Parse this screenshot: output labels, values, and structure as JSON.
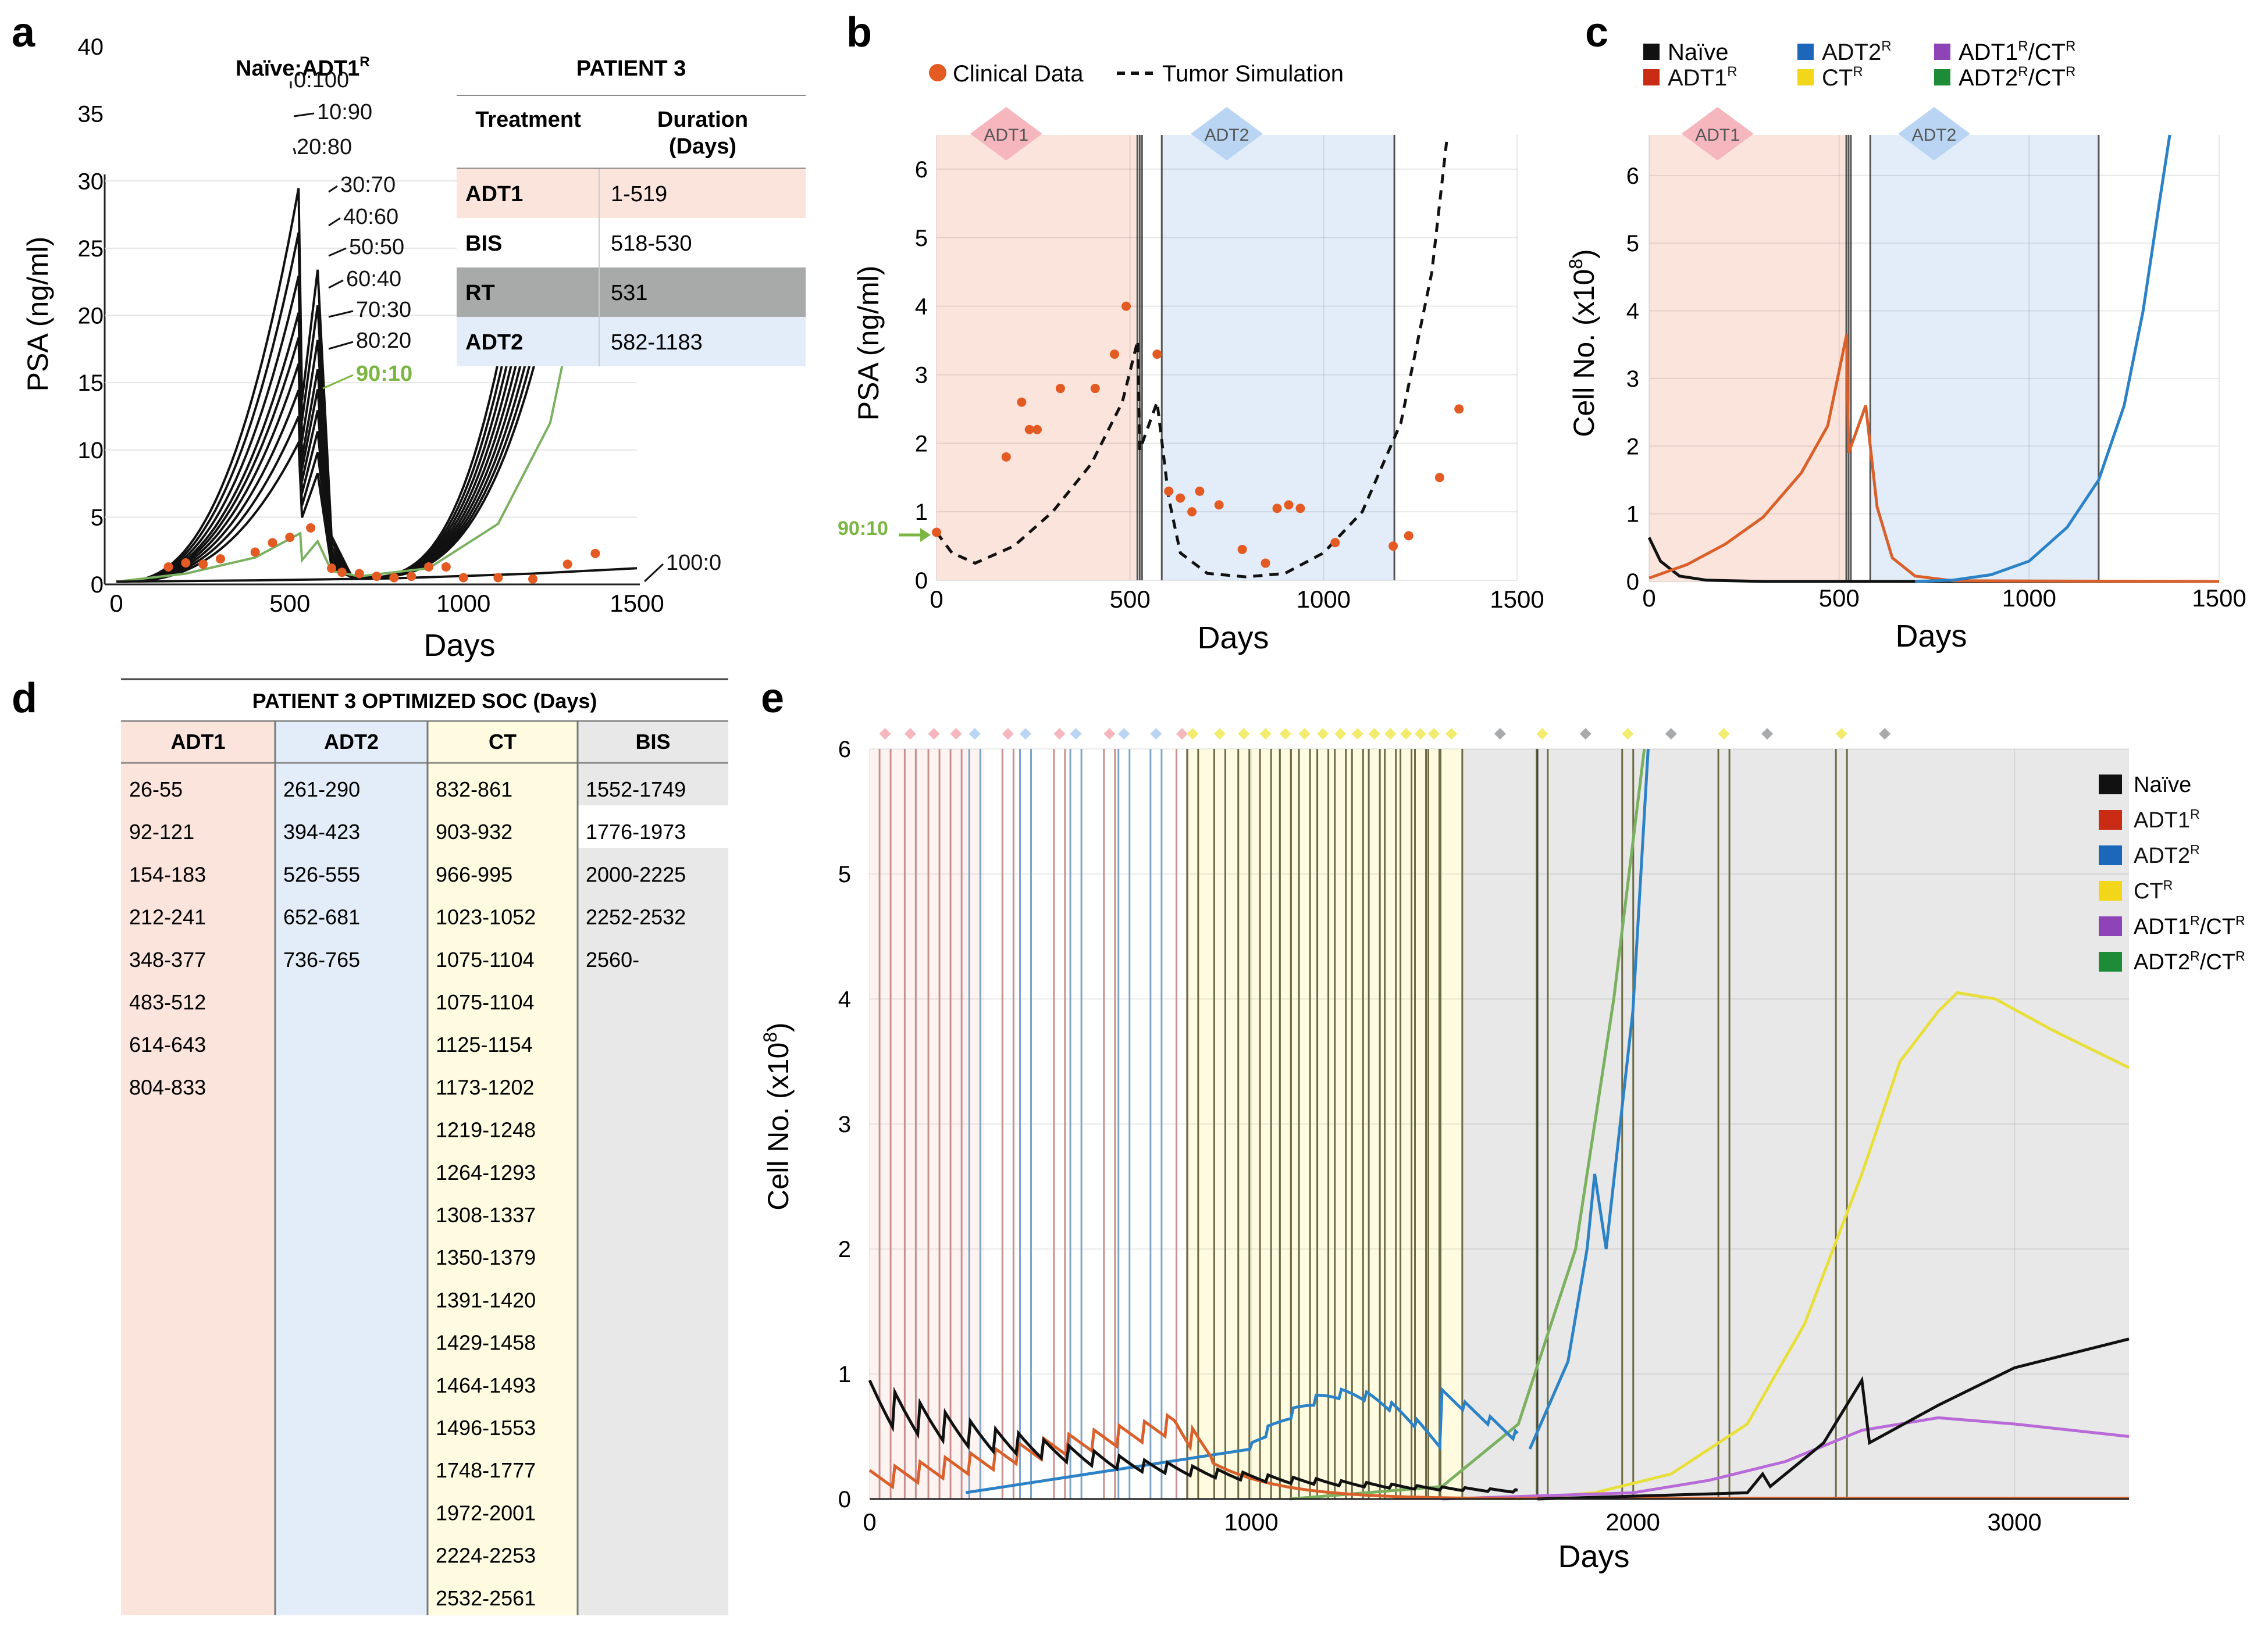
{
  "colors": {
    "adt1": "#fbe4dc",
    "adt2": "#e2edf9",
    "ct": "#fefbe0",
    "bis": "#e8e8e8",
    "rt": "#a7aaa8",
    "naive": "#111111",
    "adt1r": "#d9602a",
    "adt2r": "#2c82c6",
    "ctr": "#e8df3a",
    "adt1r_ctr": "#b86ad8",
    "adt2r_ctr": "#7ab060",
    "clinical": "#e45a23",
    "green_label": "#7bb642",
    "adt1_diamond": "#f6b6bd",
    "adt2_diamond": "#b9d5f3",
    "ct_diamond": "#f2ec6e",
    "bis_diamond": "#a9aaac",
    "legend_adt1r": "#c92b14",
    "legend_adt2r": "#1c67b9",
    "legend_ctr": "#f1d619",
    "legend_adt1r_ctr": "#8e43b6",
    "legend_adt2r_ctr": "#1e8b37"
  },
  "panel_letters": {
    "a": "a",
    "b": "b",
    "c": "c",
    "d": "d",
    "e": "e"
  },
  "superscript_r": "R",
  "patient3_table": {
    "title": "PATIENT 3",
    "col_treatment": "Treatment",
    "col_duration": "Duration\n(Days)",
    "rows": [
      {
        "treatment": "ADT1",
        "duration": "1-519"
      },
      {
        "treatment": "BIS",
        "duration": "518-530"
      },
      {
        "treatment": "RT",
        "duration": "531"
      },
      {
        "treatment": "ADT2",
        "duration": "582-1183"
      }
    ]
  },
  "optimized_table": {
    "title": "PATIENT 3 OPTIMIZED SOC (Days)",
    "headers": [
      "ADT1",
      "ADT2",
      "CT",
      "BIS"
    ],
    "adt1": [
      "26-55",
      "92-121",
      "154-183",
      "212-241",
      "348-377",
      "483-512",
      "614-643",
      "804-833"
    ],
    "adt2": [
      "261-290",
      "394-423",
      "526-555",
      "652-681",
      "736-765"
    ],
    "ct": [
      "832-861",
      "903-932",
      "966-995",
      "1023-1052",
      "1075-1104",
      "1075-1104",
      "1125-1154",
      "1173-1202",
      "1219-1248",
      "1264-1293",
      "1308-1337",
      "1350-1379",
      "1391-1420",
      "1429-1458",
      "1464-1493",
      "1496-1553",
      "1748-1777",
      "1972-2001",
      "2224-2253",
      "2532-2561"
    ],
    "bis": [
      "1552-1749",
      "1776-1973",
      "2000-2225",
      "2252-2532",
      "2560-"
    ]
  },
  "chart_data": [
    {
      "id": "a",
      "type": "line",
      "title": "Naïve:ADT1",
      "xlabel": "Days",
      "ylabel": "PSA (ng/ml)",
      "xlim": [
        0,
        1500
      ],
      "ylim": [
        0,
        40
      ],
      "x_ticks": [
        0,
        500,
        1000,
        1500
      ],
      "y_ticks": [
        0,
        5,
        10,
        15,
        20,
        25,
        30,
        35,
        40
      ],
      "series_labels": [
        "0:100",
        "10:90",
        "20:80",
        "30:70",
        "40:60",
        "50:50",
        "60:40",
        "70:30",
        "80:20",
        "90:10",
        "100:0"
      ],
      "series_peaks": [
        30,
        26.6,
        23.3,
        20.5,
        18.6,
        16.6,
        14.6,
        12.6,
        10.6,
        3.8,
        1.2
      ],
      "highlight_label": "90:10",
      "clinical_points": [
        [
          150,
          1.3
        ],
        [
          200,
          1.6
        ],
        [
          250,
          1.5
        ],
        [
          300,
          1.9
        ],
        [
          400,
          2.4
        ],
        [
          450,
          3.1
        ],
        [
          500,
          3.5
        ],
        [
          560,
          4.2
        ],
        [
          620,
          1.2
        ],
        [
          650,
          0.9
        ],
        [
          700,
          0.8
        ],
        [
          750,
          0.6
        ],
        [
          800,
          0.5
        ],
        [
          850,
          0.6
        ],
        [
          900,
          1.3
        ],
        [
          950,
          1.3
        ],
        [
          1000,
          0.5
        ],
        [
          1100,
          0.5
        ],
        [
          1200,
          0.4
        ],
        [
          1300,
          1.5
        ],
        [
          1380,
          2.3
        ]
      ]
    },
    {
      "id": "b",
      "type": "line",
      "legend": [
        "Clinical Data",
        "Tumor Simulation"
      ],
      "xlabel": "Days",
      "ylabel": "PSA (ng/ml)",
      "xlim": [
        0,
        1500
      ],
      "ylim": [
        0,
        6.5
      ],
      "x_ticks": [
        0,
        500,
        1000,
        1500
      ],
      "y_ticks": [
        0,
        1,
        2,
        3,
        4,
        5,
        6
      ],
      "highlight_label": "90:10",
      "treatment_labels": [
        "ADT1",
        "ADT2"
      ],
      "simulation": [
        [
          0,
          0.7
        ],
        [
          40,
          0.4
        ],
        [
          100,
          0.25
        ],
        [
          200,
          0.5
        ],
        [
          300,
          1.0
        ],
        [
          400,
          1.7
        ],
        [
          480,
          2.6
        ],
        [
          520,
          3.5
        ],
        [
          525,
          1.9
        ],
        [
          570,
          2.6
        ],
        [
          600,
          1.2
        ],
        [
          630,
          0.4
        ],
        [
          700,
          0.1
        ],
        [
          800,
          0.05
        ],
        [
          900,
          0.1
        ],
        [
          1000,
          0.4
        ],
        [
          1100,
          1.0
        ],
        [
          1200,
          2.3
        ],
        [
          1280,
          4.5
        ],
        [
          1320,
          6.5
        ]
      ],
      "clinical_points": [
        [
          0,
          0.7
        ],
        [
          180,
          1.8
        ],
        [
          220,
          2.6
        ],
        [
          240,
          2.2
        ],
        [
          260,
          2.2
        ],
        [
          320,
          2.8
        ],
        [
          410,
          2.8
        ],
        [
          460,
          3.3
        ],
        [
          490,
          4.0
        ],
        [
          570,
          3.3
        ],
        [
          600,
          1.3
        ],
        [
          630,
          1.2
        ],
        [
          660,
          1.0
        ],
        [
          680,
          1.3
        ],
        [
          730,
          1.1
        ],
        [
          790,
          0.45
        ],
        [
          850,
          0.25
        ],
        [
          880,
          1.05
        ],
        [
          910,
          1.1
        ],
        [
          940,
          1.05
        ],
        [
          1030,
          0.55
        ],
        [
          1180,
          0.5
        ],
        [
          1220,
          0.65
        ],
        [
          1300,
          1.5
        ],
        [
          1350,
          2.5
        ]
      ]
    },
    {
      "id": "c",
      "type": "line",
      "legend": [
        "Naïve",
        "ADT1",
        "ADT2",
        "CT",
        "ADT1/CT",
        "ADT2/CT"
      ],
      "xlabel": "Days",
      "ylabel": "Cell No. (x10",
      "ylabel_exp": "8",
      "ylabel_close": ")",
      "xlim": [
        0,
        1500
      ],
      "ylim": [
        0,
        6.6
      ],
      "x_ticks": [
        0,
        500,
        1000,
        1500
      ],
      "y_ticks": [
        0,
        1,
        2,
        3,
        4,
        5,
        6
      ],
      "treatment_labels": [
        "ADT1",
        "ADT2"
      ],
      "naive": [
        [
          0,
          0.65
        ],
        [
          30,
          0.3
        ],
        [
          80,
          0.08
        ],
        [
          150,
          0.02
        ],
        [
          300,
          0.0
        ],
        [
          1500,
          0.0
        ]
      ],
      "adt1r": [
        [
          0,
          0.05
        ],
        [
          100,
          0.25
        ],
        [
          200,
          0.55
        ],
        [
          300,
          0.95
        ],
        [
          400,
          1.6
        ],
        [
          470,
          2.3
        ],
        [
          520,
          3.65
        ],
        [
          525,
          1.9
        ],
        [
          570,
          2.6
        ],
        [
          600,
          1.1
        ],
        [
          640,
          0.35
        ],
        [
          700,
          0.08
        ],
        [
          800,
          0.01
        ],
        [
          1500,
          0.0
        ]
      ],
      "adt2r": [
        [
          700,
          0.0
        ],
        [
          800,
          0.02
        ],
        [
          900,
          0.1
        ],
        [
          1000,
          0.3
        ],
        [
          1100,
          0.8
        ],
        [
          1183,
          1.5
        ],
        [
          1250,
          2.6
        ],
        [
          1300,
          4.0
        ],
        [
          1340,
          5.5
        ],
        [
          1370,
          6.6
        ]
      ]
    },
    {
      "id": "e",
      "type": "line",
      "legend": [
        "Naïve",
        "ADT1",
        "ADT2",
        "CT",
        "ADT1/CT",
        "ADT2/CT"
      ],
      "xlabel": "Days",
      "ylabel": "Cell No. (x10",
      "ylabel_exp": "8",
      "ylabel_close": ")",
      "xlim": [
        0,
        3300
      ],
      "ylim": [
        0,
        6
      ],
      "x_ticks": [
        0,
        1000,
        2000,
        3000
      ],
      "y_ticks": [
        0,
        1,
        2,
        3,
        4,
        5,
        6
      ],
      "ctr": [
        [
          1700,
          0.0
        ],
        [
          1900,
          0.05
        ],
        [
          2100,
          0.2
        ],
        [
          2300,
          0.6
        ],
        [
          2450,
          1.4
        ],
        [
          2600,
          2.6
        ],
        [
          2700,
          3.5
        ],
        [
          2800,
          3.9
        ],
        [
          2850,
          4.05
        ],
        [
          2950,
          4.0
        ],
        [
          3100,
          3.75
        ],
        [
          3300,
          3.45
        ]
      ],
      "adt1r_ctr": [
        [
          1500,
          0.0
        ],
        [
          2000,
          0.05
        ],
        [
          2200,
          0.15
        ],
        [
          2400,
          0.3
        ],
        [
          2600,
          0.55
        ],
        [
          2800,
          0.65
        ],
        [
          3000,
          0.6
        ],
        [
          3300,
          0.5
        ]
      ],
      "naive_late": [
        [
          1750,
          0.0
        ],
        [
          2300,
          0.05
        ],
        [
          2340,
          0.2
        ],
        [
          2360,
          0.1
        ],
        [
          2500,
          0.45
        ],
        [
          2600,
          0.95
        ],
        [
          2620,
          0.45
        ],
        [
          2800,
          0.75
        ],
        [
          3000,
          1.05
        ],
        [
          3300,
          1.28
        ]
      ],
      "adt2r_ctr": [
        [
          1100,
          0.0
        ],
        [
          1500,
          0.1
        ],
        [
          1700,
          0.6
        ],
        [
          1850,
          2.0
        ],
        [
          1950,
          4.0
        ],
        [
          2030,
          6.0
        ]
      ],
      "adt2r_late": [
        [
          1730,
          0.4
        ],
        [
          1830,
          1.1
        ],
        [
          1880,
          2.0
        ],
        [
          1900,
          2.6
        ],
        [
          1930,
          2.0
        ],
        [
          2000,
          3.9
        ],
        [
          2040,
          6.0
        ]
      ]
    }
  ]
}
